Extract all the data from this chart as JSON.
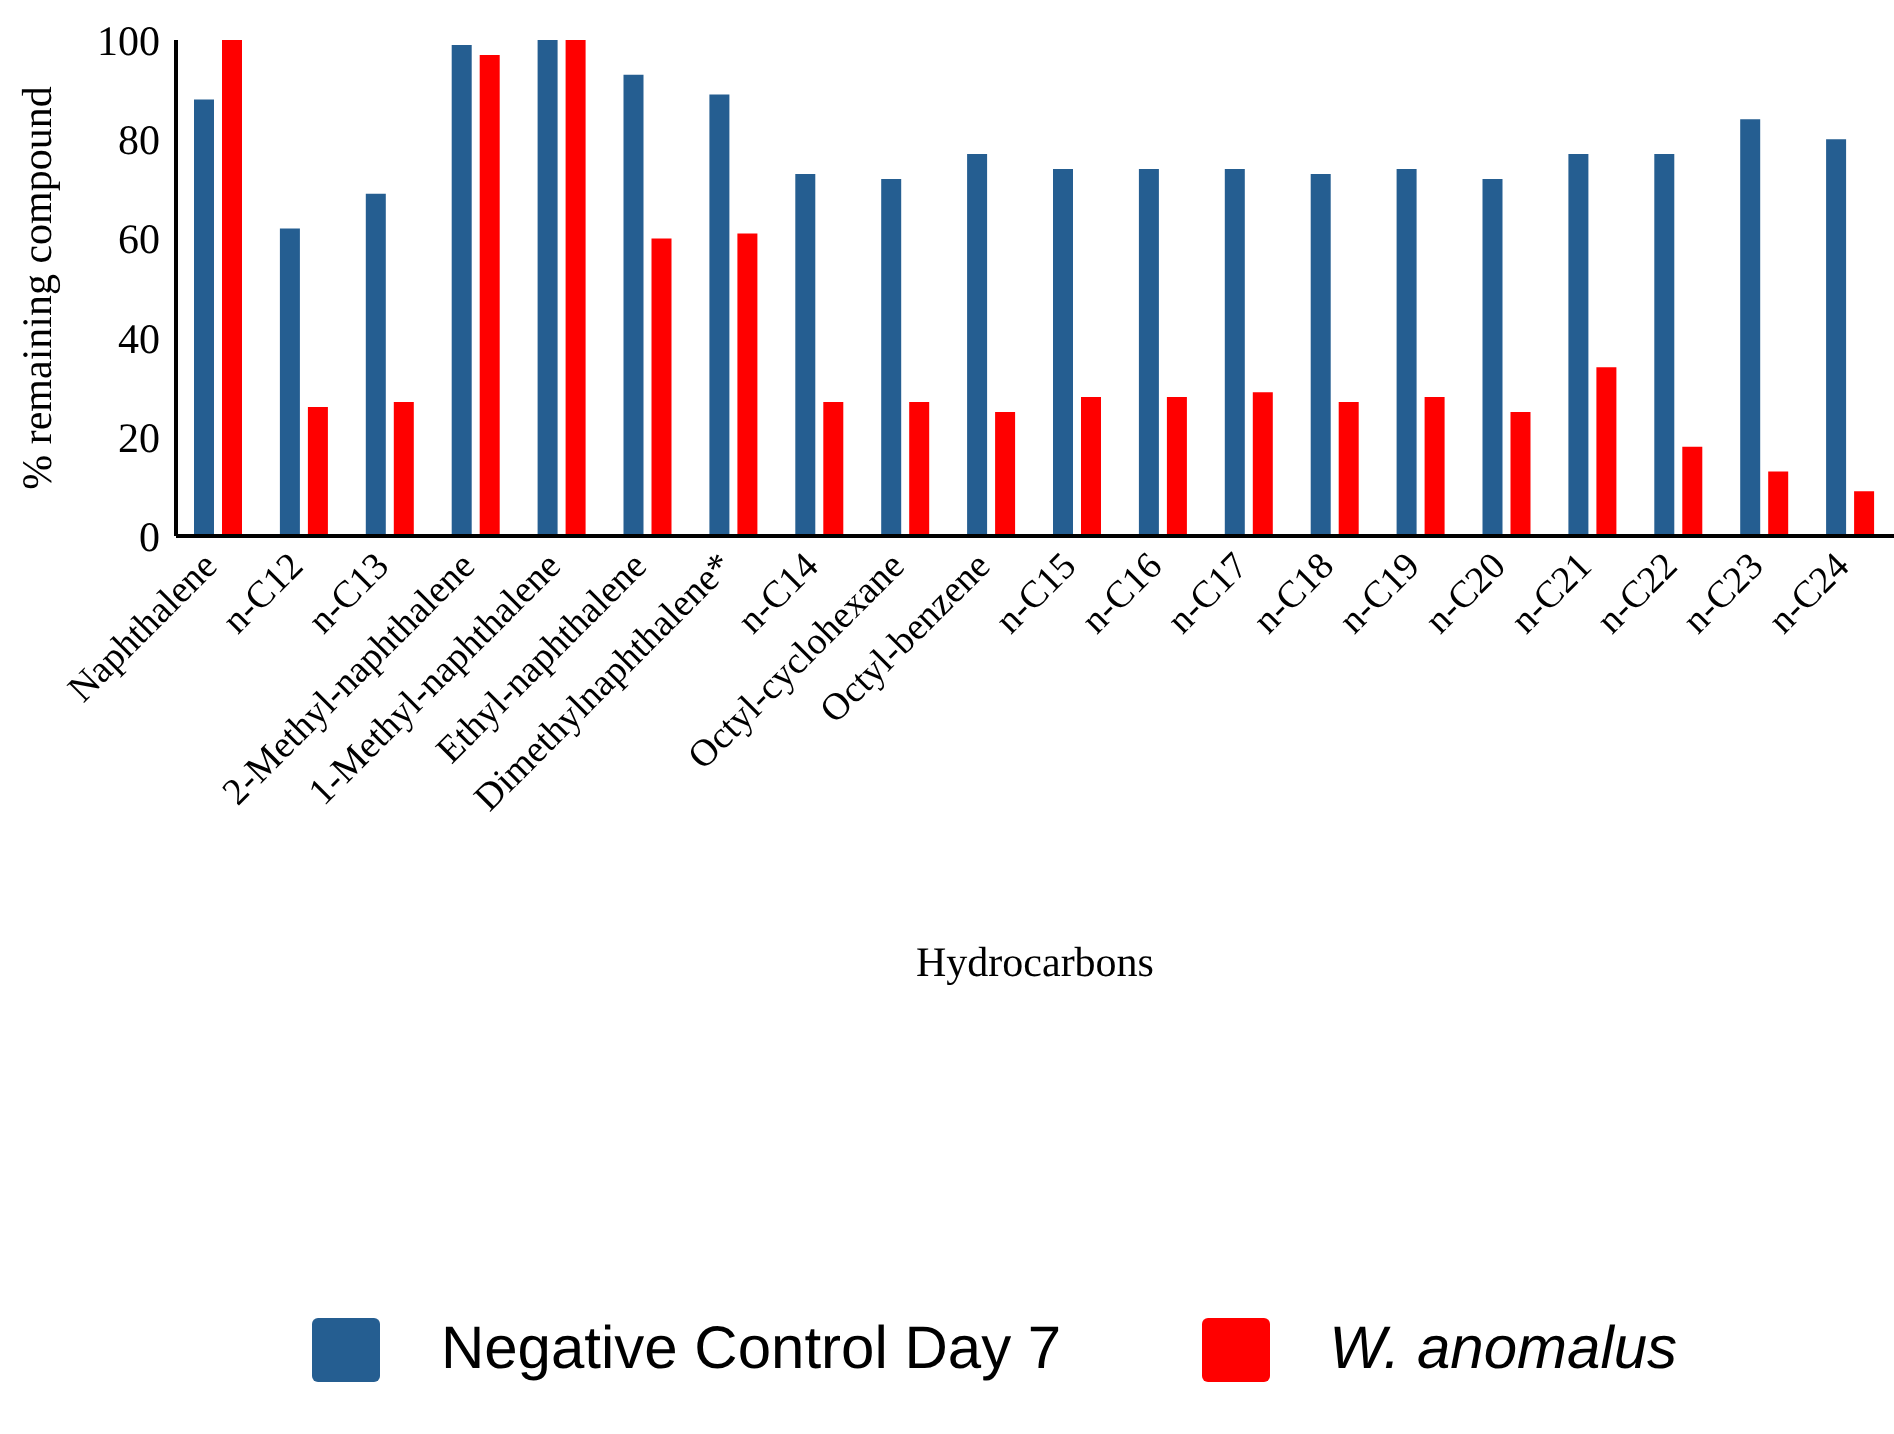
{
  "chart_data": {
    "type": "bar",
    "xlabel": "Hydrocarbons",
    "ylabel": "% remaining compound",
    "categories": [
      "Naphthalene",
      "n-C12",
      "n-C13",
      "2-Methyl-naphthalene",
      "1-Methyl-naphthalene",
      "Ethyl-naphthalene",
      "Dimethylnaphthalene*",
      "n-C14",
      "Octyl-cyclohexane",
      "Octyl-benzene",
      "n-C15",
      "n-C16",
      "n-C17",
      "n-C18",
      "n-C19",
      "n-C20",
      "n-C21",
      "n-C22",
      "n-C23",
      "n-C24"
    ],
    "series": [
      {
        "name": "Negative Control Day 7",
        "color": "#255e91",
        "values": [
          88,
          62,
          69,
          99,
          100,
          93,
          89,
          73,
          72,
          77,
          74,
          74,
          74,
          73,
          74,
          72,
          77,
          77,
          84,
          80
        ]
      },
      {
        "name": "W. anomalus",
        "color": "#ff0000",
        "values": [
          100,
          26,
          27,
          97,
          100,
          60,
          61,
          27,
          27,
          25,
          28,
          28,
          29,
          27,
          28,
          25,
          34,
          18,
          13,
          9
        ]
      }
    ],
    "ylim": [
      0,
      100
    ],
    "yticks": [
      0,
      20,
      40,
      60,
      80,
      100
    ],
    "grid": false,
    "legend": "bottom"
  }
}
